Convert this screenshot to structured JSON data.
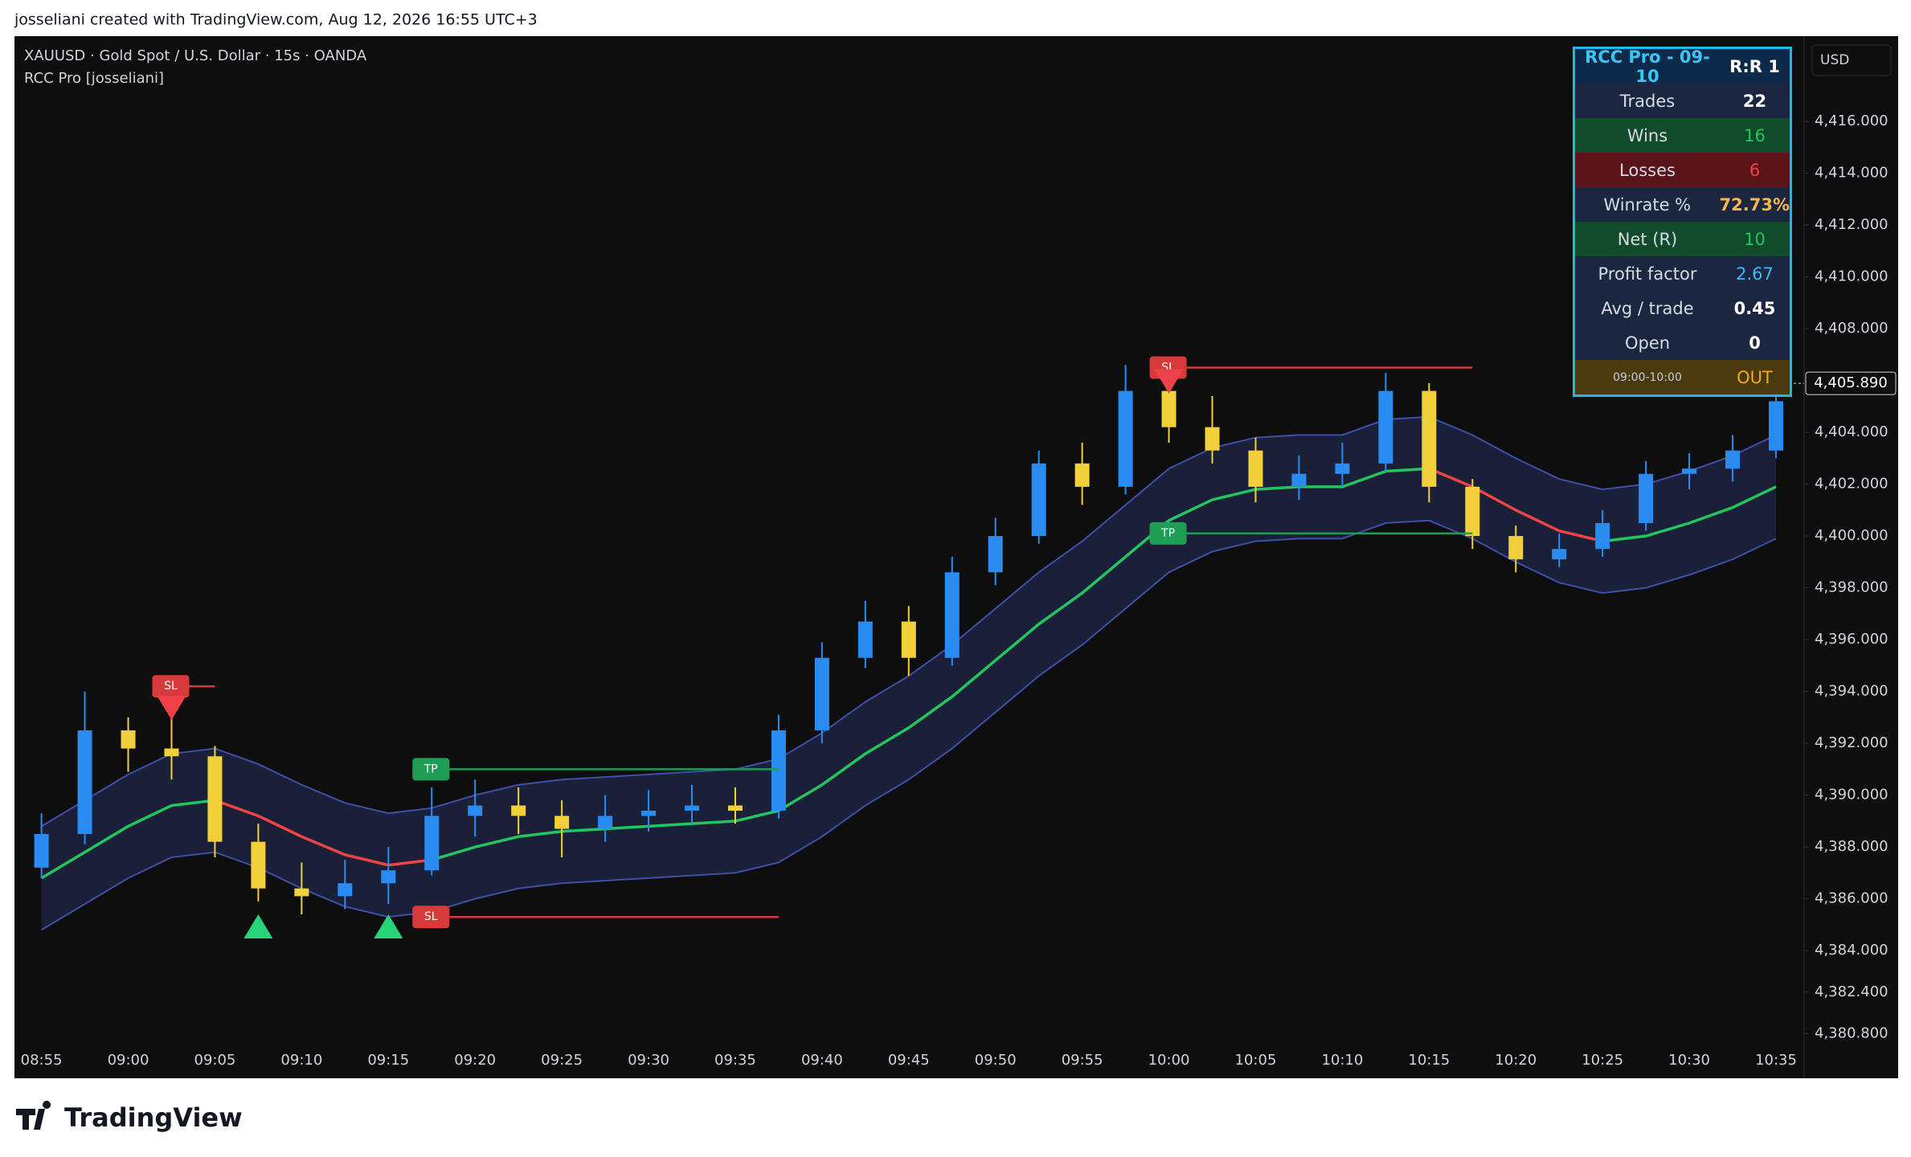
{
  "header": {
    "credit": "josseliani created with TradingView.com, Aug 12, 2026 16:55 UTC+3"
  },
  "footer": {
    "brand": "TradingView"
  },
  "stats_table": {
    "title": "RCC Pro - 09-10",
    "ratio": "R:R 1",
    "rows": [
      [
        "Trades",
        "22"
      ],
      [
        "Wins",
        "16"
      ],
      [
        "Losses",
        "6"
      ],
      [
        "Winrate %",
        "72.73%"
      ],
      [
        "Net (R)",
        "10"
      ],
      [
        "Profit factor",
        "2.67"
      ],
      [
        "Avg / trade",
        "0.45"
      ],
      [
        "Open",
        "0"
      ],
      [
        "09:00-10:00",
        "OUT"
      ]
    ]
  },
  "chart_data": {
    "type": "candlestick",
    "title": "XAUUSD · Gold Spot / U.S. Dollar · 15s · OANDA",
    "subtitle": "RCC Pro [josseliani]",
    "currency": "USD",
    "categories": [
      "08:55",
      null,
      "09:00",
      null,
      "09:05",
      null,
      "09:10",
      null,
      "09:15",
      null,
      "09:20",
      null,
      "09:25",
      null,
      "09:30",
      null,
      "09:35",
      null,
      "09:40",
      null,
      "09:45",
      null,
      "09:50",
      null,
      "09:55",
      null,
      "10:00",
      null,
      "10:05",
      null,
      "10:10",
      null,
      "10:15",
      null,
      "10:20",
      null,
      "10:25",
      null,
      "10:30",
      null,
      "10:35"
    ],
    "open": [
      4387.2,
      4388.5,
      4392.5,
      4391.8,
      4391.5,
      4388.2,
      4386.4,
      4386.1,
      4386.6,
      4387.1,
      4389.2,
      4389.6,
      4389.2,
      4388.7,
      4389.2,
      4389.4,
      4389.6,
      4389.4,
      4392.5,
      4395.3,
      4396.7,
      4395.3,
      4398.6,
      4400.0,
      4402.8,
      4401.9,
      4405.6,
      4404.2,
      4403.3,
      4401.9,
      4402.4,
      4402.8,
      4405.6,
      4401.9,
      4400.0,
      4399.1,
      4399.5,
      4400.5,
      4402.4,
      4402.6,
      4403.3
    ],
    "high": [
      4389.3,
      4394.0,
      4393.0,
      4393.1,
      4391.9,
      4388.9,
      4387.4,
      4387.5,
      4388.0,
      4390.3,
      4390.6,
      4390.3,
      4389.8,
      4390.0,
      4390.2,
      4390.4,
      4390.3,
      4393.1,
      4395.9,
      4397.5,
      4397.3,
      4399.2,
      4400.7,
      4403.3,
      4403.6,
      4406.6,
      4406.2,
      4405.4,
      4403.8,
      4403.1,
      4403.6,
      4406.3,
      4405.9,
      4402.2,
      4400.4,
      4400.1,
      4401.0,
      4402.9,
      4403.2,
      4403.9,
      4405.9
    ],
    "low": [
      4386.8,
      4388.1,
      4390.9,
      4390.6,
      4387.6,
      4385.9,
      4385.4,
      4385.6,
      4385.8,
      4386.9,
      4388.4,
      4388.5,
      4387.6,
      4388.2,
      4388.6,
      4388.9,
      4388.9,
      4389.1,
      4392.0,
      4394.9,
      4394.6,
      4395.0,
      4398.1,
      4399.7,
      4401.2,
      4401.6,
      4403.6,
      4402.8,
      4401.3,
      4401.4,
      4401.9,
      4402.5,
      4401.3,
      4399.5,
      4398.6,
      4398.8,
      4399.2,
      4400.2,
      4401.8,
      4402.1,
      4403.0
    ],
    "close": [
      4388.5,
      4392.5,
      4391.8,
      4391.5,
      4388.2,
      4386.4,
      4386.1,
      4386.6,
      4387.1,
      4389.2,
      4389.6,
      4389.2,
      4388.7,
      4389.2,
      4389.4,
      4389.6,
      4389.4,
      4392.5,
      4395.3,
      4396.7,
      4395.3,
      4398.6,
      4400.0,
      4402.8,
      4401.9,
      4405.6,
      4404.2,
      4403.3,
      4401.9,
      4402.4,
      4402.8,
      4405.6,
      4401.9,
      4400.0,
      4399.1,
      4399.5,
      4400.5,
      4402.4,
      4402.6,
      4403.3,
      4405.2
    ],
    "up_color": "#2a8cf0",
    "down_color": "#f2d03b",
    "basis": [
      4386.8,
      4387.8,
      4388.8,
      4389.6,
      4389.8,
      4389.2,
      4388.4,
      4387.7,
      4387.3,
      4387.5,
      4388.0,
      4388.4,
      4388.6,
      4388.7,
      4388.8,
      4388.9,
      4389.0,
      4389.4,
      4390.4,
      4391.6,
      4392.6,
      4393.8,
      4395.2,
      4396.6,
      4397.8,
      4399.2,
      4400.6,
      4401.4,
      4401.8,
      4401.9,
      4401.9,
      4402.5,
      4402.6,
      4401.9,
      4401.0,
      4400.2,
      4399.8,
      4400.0,
      4400.5,
      4401.1,
      4401.9
    ],
    "upper": [
      4388.8,
      4389.8,
      4390.8,
      4391.6,
      4391.8,
      4391.2,
      4390.4,
      4389.7,
      4389.3,
      4389.5,
      4390.0,
      4390.4,
      4390.6,
      4390.7,
      4390.8,
      4390.9,
      4391.0,
      4391.4,
      4392.4,
      4393.6,
      4394.6,
      4395.8,
      4397.2,
      4398.6,
      4399.8,
      4401.2,
      4402.6,
      4403.4,
      4403.8,
      4403.9,
      4403.9,
      4404.5,
      4404.6,
      4403.9,
      4403.0,
      4402.2,
      4401.8,
      4402.0,
      4402.5,
      4403.1,
      4403.9
    ],
    "lower": [
      4384.8,
      4385.8,
      4386.8,
      4387.6,
      4387.8,
      4387.2,
      4386.4,
      4385.7,
      4385.3,
      4385.5,
      4386.0,
      4386.4,
      4386.6,
      4386.7,
      4386.8,
      4386.9,
      4387.0,
      4387.4,
      4388.4,
      4389.6,
      4390.6,
      4391.8,
      4393.2,
      4394.6,
      4395.8,
      4397.2,
      4398.6,
      4399.4,
      4399.8,
      4399.9,
      4399.9,
      4400.5,
      4400.6,
      4399.9,
      4399.0,
      4398.2,
      4397.8,
      4398.0,
      4398.5,
      4399.1,
      4399.9
    ],
    "basis_up_color": "#22c55e",
    "basis_down_color": "#ef4444",
    "band_color": "#3d4fa8",
    "ylim": [
      4380.47,
      4419.29
    ],
    "yticks": [
      {
        "value": 4380.8,
        "label": "4,380.800"
      },
      {
        "value": 4382.4,
        "label": "4,382.400"
      },
      {
        "value": 4384,
        "label": "4,384.000"
      },
      {
        "value": 4386,
        "label": "4,386.000"
      },
      {
        "value": 4388,
        "label": "4,388.000"
      },
      {
        "value": 4390,
        "label": "4,390.000"
      },
      {
        "value": 4392,
        "label": "4,392.000"
      },
      {
        "value": 4394,
        "label": "4,394.000"
      },
      {
        "value": 4396,
        "label": "4,396.000"
      },
      {
        "value": 4398,
        "label": "4,398.000"
      },
      {
        "value": 4400,
        "label": "4,400.000"
      },
      {
        "value": 4402,
        "label": "4,402.000"
      },
      {
        "value": 4404,
        "label": "4,404.000"
      },
      {
        "value": 4406,
        "label": "4,406.000"
      },
      {
        "value": 4408,
        "label": "4,408.000"
      },
      {
        "value": 4410,
        "label": "4,410.000"
      },
      {
        "value": 4412,
        "label": "4,412.000"
      },
      {
        "value": 4414,
        "label": "4,414.000"
      },
      {
        "value": 4416,
        "label": "4,416.000"
      }
    ],
    "grid": false,
    "last_price": {
      "value": 4405.89,
      "label": "4,405.890"
    },
    "trade_levels": [
      {
        "label": "SL",
        "price": 4394.2,
        "from": 3,
        "to": 4,
        "color": "#d63a3a"
      },
      {
        "label": "TP",
        "price": 4391.0,
        "from": 9,
        "to": 17,
        "color": "#1f9d55"
      },
      {
        "label": "SL",
        "price": 4385.3,
        "from": 9,
        "to": 17,
        "color": "#d63a3a"
      },
      {
        "label": "SL",
        "price": 4406.5,
        "from": 26,
        "to": 33,
        "color": "#d63a3a"
      },
      {
        "label": "TP",
        "price": 4400.1,
        "from": 26,
        "to": 33,
        "color": "#1f9d55"
      }
    ],
    "signals": [
      {
        "direction": "down",
        "index": 3,
        "price": 4392.9,
        "color": "#f0404a"
      },
      {
        "direction": "up",
        "index": 5,
        "price": 4385.4,
        "color": "#27d47a"
      },
      {
        "direction": "up",
        "index": 8,
        "price": 4385.4,
        "color": "#27d47a"
      },
      {
        "direction": "down",
        "index": 26,
        "price": 4405.5,
        "color": "#f0404a"
      }
    ]
  }
}
